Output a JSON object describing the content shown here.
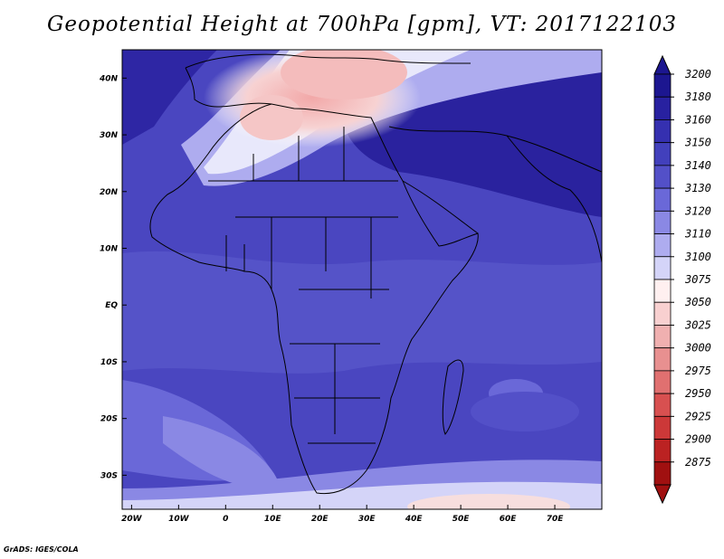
{
  "title": "Geopotential Height at 700hPa [gpm], VT: 2017122103",
  "credit": "GrADS: IGES/COLA",
  "map": {
    "lon_range": [
      -22,
      80
    ],
    "lat_range": [
      -36,
      45
    ],
    "lon_ticks": [
      "20W",
      "10W",
      "0",
      "10E",
      "20E",
      "30E",
      "40E",
      "50E",
      "60E",
      "70E"
    ],
    "lat_ticks": [
      "40N",
      "30N",
      "20N",
      "10N",
      "EQ",
      "10S",
      "20S",
      "30S"
    ],
    "lon_values": [
      -20,
      -10,
      0,
      10,
      20,
      30,
      40,
      50,
      60,
      70
    ],
    "lat_values": [
      40,
      30,
      20,
      10,
      0,
      -10,
      -20,
      -30
    ]
  },
  "colorbar": {
    "levels": [
      "3200",
      "3180",
      "3160",
      "3150",
      "3140",
      "3130",
      "3120",
      "3110",
      "3100",
      "3075",
      "3050",
      "3025",
      "3000",
      "2975",
      "2950",
      "2925",
      "2900",
      "2875"
    ],
    "colors": [
      "#1c1690",
      "#2821a0",
      "#3530b0",
      "#4240bc",
      "#5350c8",
      "#6a68d8",
      "#8a88e4",
      "#aeacef",
      "#d4d4f8",
      "#fff0f0",
      "#f8d0d0",
      "#f0b0b0",
      "#e89090",
      "#e07070",
      "#d85050",
      "#cc3838",
      "#bb2222",
      "#a01010"
    ]
  }
}
